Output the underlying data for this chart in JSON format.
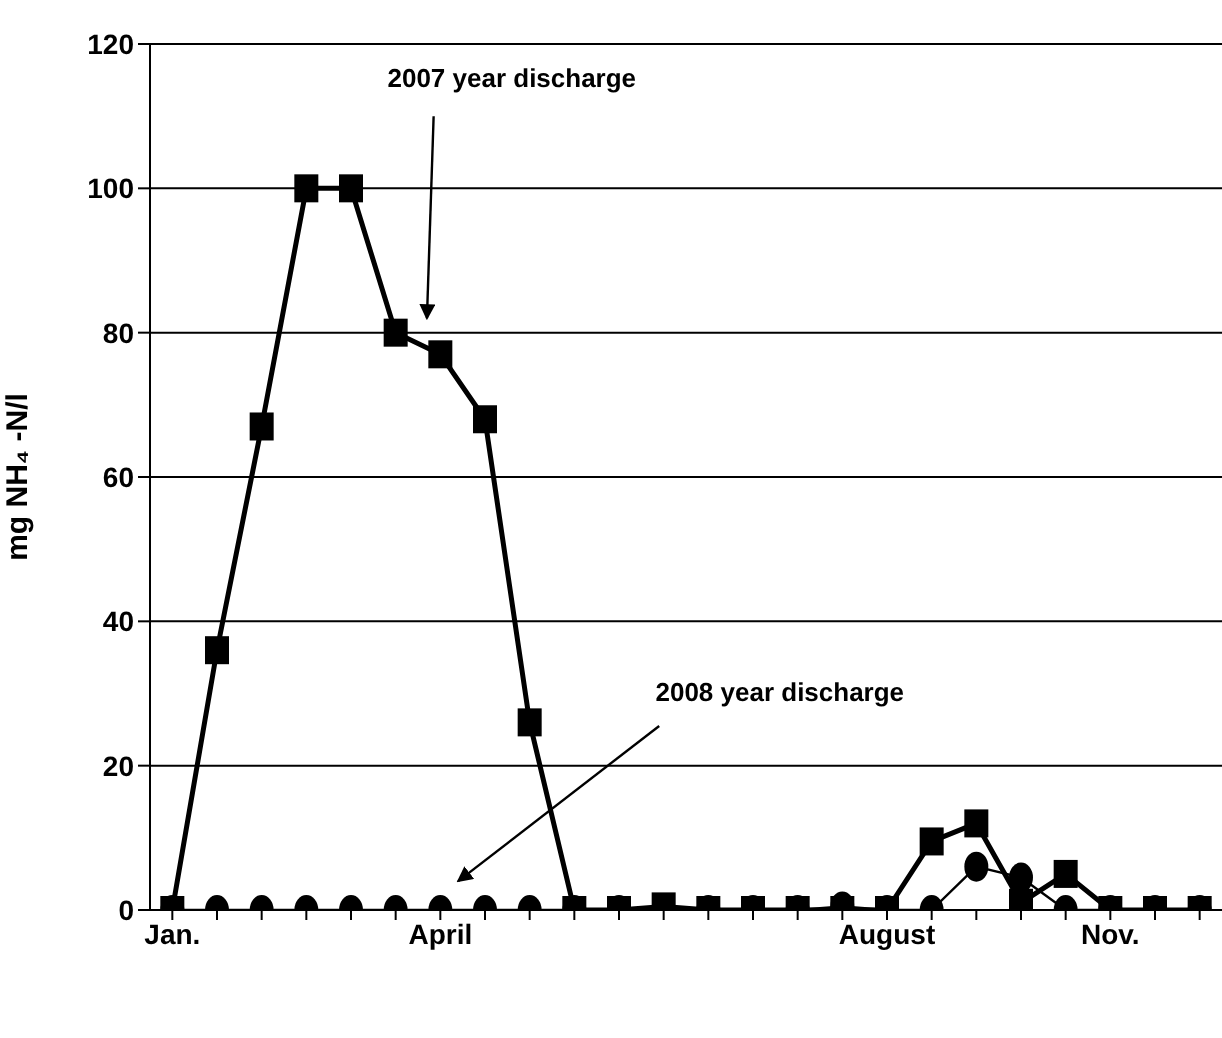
{
  "chart_data": {
    "type": "line",
    "ylabel": "mg NH₄ -N/l",
    "categories": [
      "Jan.",
      null,
      null,
      null,
      null,
      null,
      "April",
      null,
      null,
      null,
      null,
      null,
      null,
      null,
      null,
      null,
      "August",
      null,
      null,
      null,
      null,
      "Nov.",
      null,
      null
    ],
    "series": [
      {
        "name": "2007 year discharge",
        "color": "#000000",
        "marker": "square",
        "values": [
          0,
          36,
          67,
          100,
          100,
          80,
          77,
          68,
          26,
          0,
          0,
          0.5,
          0,
          0,
          0,
          0,
          0,
          9.5,
          12,
          1,
          5,
          0,
          0,
          0
        ]
      },
      {
        "name": "2008 year discharge",
        "color": "#000000",
        "marker": "circle",
        "values": [
          0,
          0,
          0,
          0,
          0,
          0,
          0,
          0,
          0,
          0,
          0,
          0,
          0,
          0,
          0,
          0.5,
          0,
          0,
          6,
          4.5,
          0,
          0,
          0,
          0
        ]
      }
    ],
    "ylim": [
      0,
      120
    ],
    "yticks": [
      0,
      20,
      40,
      60,
      80,
      100,
      120
    ],
    "grid": "y",
    "line_style": "solid"
  }
}
